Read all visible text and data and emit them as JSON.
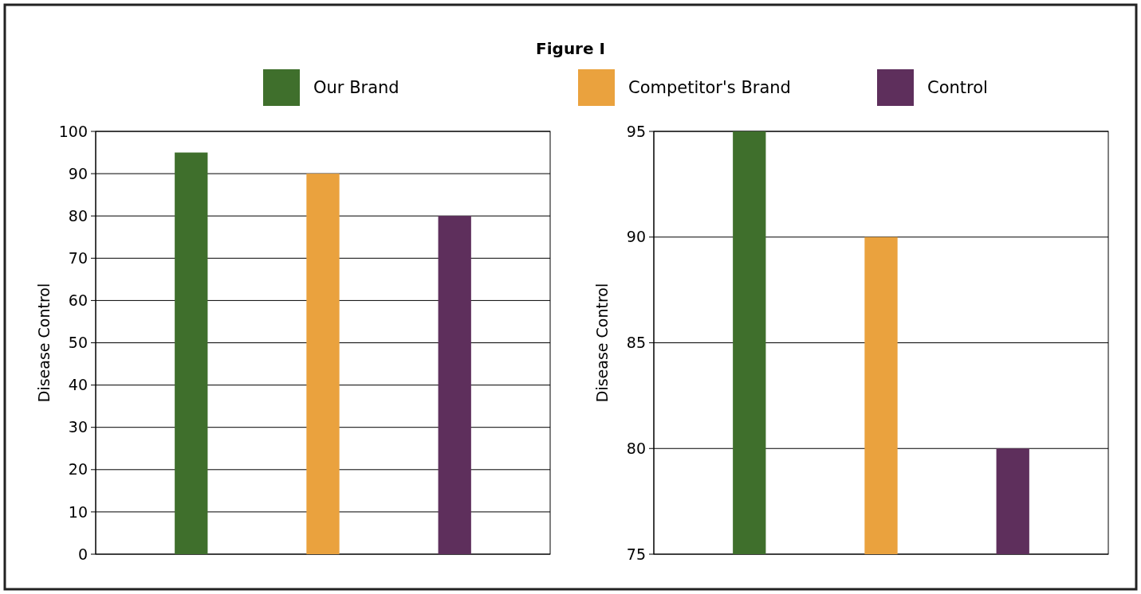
{
  "chart_data": [
    {
      "type": "bar",
      "title": "Figure I",
      "categories": [
        null
      ],
      "series": [
        {
          "name": "Our Brand",
          "color": "#3f6f2c",
          "values": [
            95
          ]
        },
        {
          "name": "Competitor's Brand",
          "color": "#eaa23e",
          "values": [
            90
          ]
        },
        {
          "name": "Control",
          "color": "#5e2f5c",
          "values": [
            80
          ]
        }
      ],
      "ylabel": "Disease Control",
      "ylim": [
        0,
        100
      ],
      "yticks": [
        0,
        10,
        20,
        30,
        40,
        50,
        60,
        70,
        80,
        90,
        100
      ],
      "grid": "y",
      "legend": "top"
    },
    {
      "type": "bar",
      "categories": [
        null
      ],
      "series": [
        {
          "color": "#3f6f2c",
          "values": [
            95
          ]
        },
        {
          "color": "#eaa23e",
          "values": [
            90
          ]
        },
        {
          "color": "#5e2f5c",
          "values": [
            80
          ]
        }
      ],
      "ylabel": "Disease Control",
      "ylim": [
        75,
        95
      ],
      "yticks": [
        75,
        80,
        85,
        90,
        95
      ],
      "grid": "y"
    }
  ]
}
